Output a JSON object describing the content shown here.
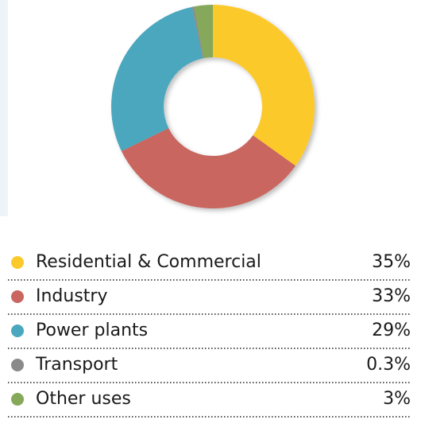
{
  "chart_data": {
    "type": "donut",
    "categories": [
      "Residential & Commercial",
      "Industry",
      "Power plants",
      "Transport",
      "Other uses"
    ],
    "values": [
      35,
      33,
      29,
      0.3,
      3
    ],
    "value_labels": [
      "35%",
      "33%",
      "29%",
      "0.3%",
      "3%"
    ],
    "colors": [
      "#fcc92c",
      "#c9665f",
      "#4ba7be",
      "#8a8a8a",
      "#86a85a"
    ]
  }
}
